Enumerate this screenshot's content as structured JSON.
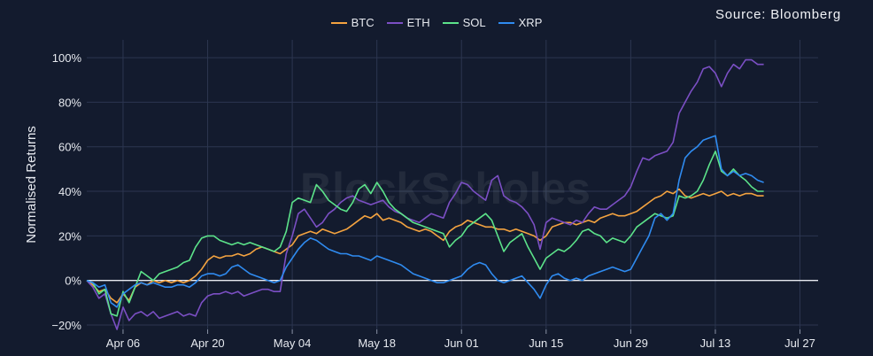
{
  "source": "Source: Bloomberg",
  "watermark": "BlockScholes",
  "chart_data": {
    "type": "line",
    "ylabel": "Normalised Returns",
    "ylim": [
      -22,
      108
    ],
    "yticks": [
      -20,
      0,
      20,
      40,
      60,
      80,
      100
    ],
    "ytick_labels": [
      "−20%",
      "0%",
      "20%",
      "40%",
      "60%",
      "80%",
      "100%"
    ],
    "xlim": [
      "2023-03-31",
      "2023-07-30"
    ],
    "xticks": [
      "2023-04-06",
      "2023-04-20",
      "2023-05-04",
      "2023-05-18",
      "2023-06-01",
      "2023-06-15",
      "2023-06-29",
      "2023-07-13",
      "2023-07-27"
    ],
    "xtick_labels": [
      "Apr 06",
      "Apr 20",
      "May 04",
      "May 18",
      "Jun 01",
      "Jun 15",
      "Jun 29",
      "Jul 13",
      "Jul 27"
    ],
    "grid": true,
    "legend_position": "top-center",
    "start_date": "2023-03-31",
    "series": [
      {
        "name": "BTC",
        "color": "#f4a340",
        "values": [
          0,
          -2,
          -5,
          -4,
          -8,
          -10,
          -6,
          -9,
          -3,
          -1,
          -2,
          0,
          -1,
          0,
          -1,
          0,
          -1,
          0,
          2,
          5,
          9,
          11,
          10,
          11,
          11,
          12,
          11,
          12,
          14,
          15,
          14,
          13,
          12,
          14,
          16,
          20,
          21,
          22,
          21,
          23,
          22,
          21,
          22,
          23,
          25,
          27,
          29,
          28,
          30,
          27,
          28,
          27,
          26,
          24,
          23,
          22,
          23,
          22,
          20,
          18,
          22,
          24,
          25,
          27,
          26,
          25,
          24,
          24,
          23,
          23,
          22,
          23,
          22,
          21,
          20,
          18,
          20,
          24,
          25,
          26,
          26,
          25,
          26,
          27,
          26,
          28,
          29,
          30,
          29,
          29,
          30,
          31,
          33,
          35,
          37,
          38,
          40,
          39,
          41,
          38,
          37,
          38,
          39,
          38,
          39,
          40,
          38,
          39,
          38,
          39,
          39,
          38,
          38
        ]
      },
      {
        "name": "ETH",
        "color": "#7b4fc4",
        "values": [
          0,
          -3,
          -8,
          -6,
          -15,
          -22,
          -12,
          -18,
          -15,
          -14,
          -16,
          -14,
          -17,
          -16,
          -15,
          -14,
          -16,
          -15,
          -16,
          -10,
          -7,
          -6,
          -6,
          -5,
          -6,
          -5,
          -7,
          -6,
          -5,
          -4,
          -4,
          -5,
          -5,
          12,
          20,
          30,
          32,
          28,
          24,
          26,
          30,
          32,
          35,
          37,
          38,
          36,
          35,
          34,
          35,
          36,
          33,
          31,
          30,
          28,
          27,
          26,
          28,
          30,
          29,
          28,
          35,
          39,
          44,
          43,
          40,
          38,
          36,
          45,
          47,
          38,
          36,
          35,
          33,
          30,
          25,
          14,
          26,
          28,
          27,
          26,
          25,
          27,
          26,
          30,
          33,
          32,
          32,
          34,
          36,
          38,
          42,
          49,
          55,
          54,
          56,
          57,
          58,
          62,
          75,
          80,
          85,
          89,
          95,
          96,
          93,
          87,
          93,
          97,
          95,
          99,
          99,
          97,
          97
        ]
      },
      {
        "name": "SOL",
        "color": "#5ce38a",
        "values": [
          0,
          -1,
          -6,
          -4,
          -15,
          -16,
          -5,
          -10,
          -3,
          4,
          2,
          0,
          3,
          4,
          5,
          6,
          8,
          9,
          15,
          19,
          20,
          20,
          18,
          17,
          16,
          17,
          16,
          17,
          16,
          15,
          14,
          13,
          15,
          22,
          35,
          37,
          36,
          35,
          43,
          40,
          36,
          34,
          32,
          31,
          35,
          41,
          43,
          39,
          44,
          40,
          35,
          32,
          30,
          28,
          26,
          25,
          24,
          23,
          22,
          21,
          15,
          18,
          20,
          24,
          26,
          28,
          30,
          27,
          20,
          13,
          17,
          19,
          21,
          15,
          10,
          5,
          10,
          12,
          14,
          13,
          15,
          18,
          22,
          23,
          21,
          20,
          17,
          19,
          18,
          17,
          20,
          24,
          26,
          28,
          30,
          29,
          28,
          29,
          38,
          37,
          38,
          40,
          45,
          52,
          58,
          49,
          47,
          50,
          47,
          45,
          42,
          40,
          40
        ]
      },
      {
        "name": "XRP",
        "color": "#2f8bf0",
        "values": [
          0,
          -1,
          -3,
          -2,
          -10,
          -12,
          -6,
          -4,
          -2,
          -1,
          -2,
          -1,
          -2,
          -3,
          -3,
          -2,
          -2,
          -3,
          -1,
          2,
          3,
          3,
          2,
          3,
          6,
          7,
          5,
          3,
          2,
          1,
          0,
          -1,
          0,
          6,
          10,
          14,
          17,
          19,
          18,
          16,
          14,
          13,
          12,
          12,
          11,
          11,
          10,
          9,
          11,
          10,
          9,
          8,
          7,
          5,
          3,
          2,
          1,
          0,
          -1,
          -1,
          0,
          1,
          2,
          5,
          7,
          8,
          7,
          3,
          0,
          -1,
          0,
          1,
          2,
          -1,
          -4,
          -8,
          -2,
          2,
          3,
          1,
          0,
          1,
          0,
          2,
          3,
          4,
          5,
          6,
          5,
          4,
          5,
          10,
          15,
          20,
          28,
          30,
          27,
          30,
          45,
          55,
          58,
          60,
          63,
          64,
          65,
          50,
          47,
          49,
          47,
          48,
          47,
          45,
          44
        ]
      }
    ]
  }
}
